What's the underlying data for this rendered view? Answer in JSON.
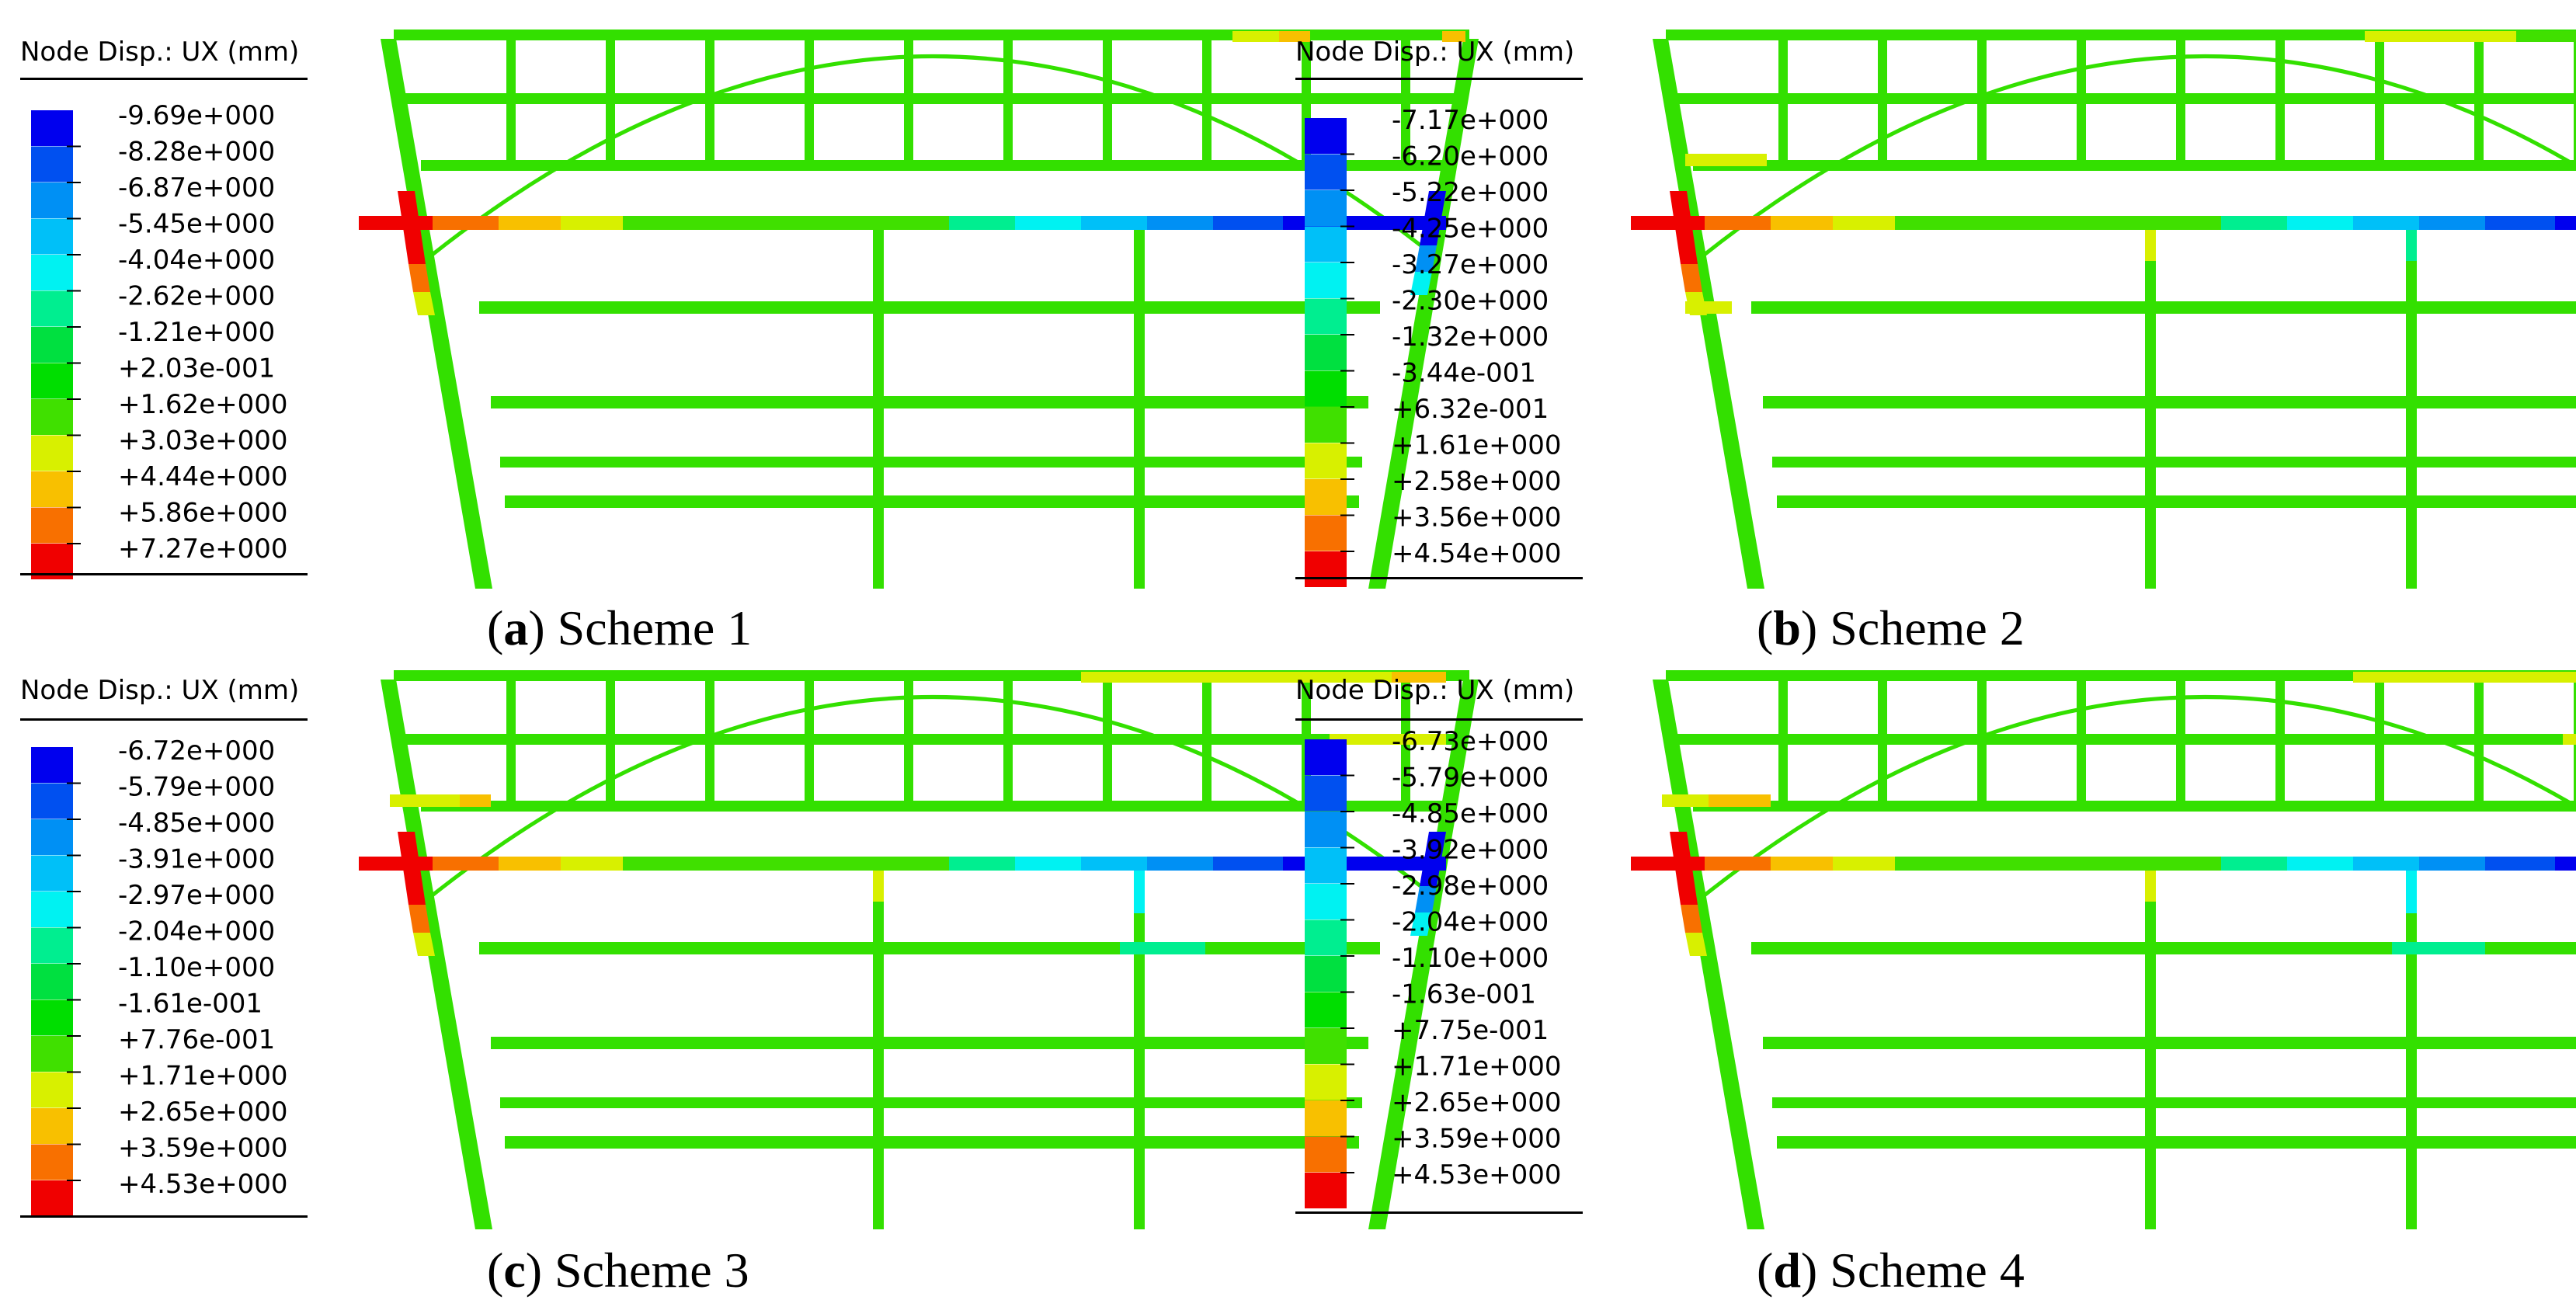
{
  "panels": [
    {
      "id": "a",
      "legend_title": "Node Disp.: UX (mm)",
      "legend_values": [
        "-9.69e+000",
        "-8.28e+000",
        "-6.87e+000",
        "-5.45e+000",
        "-4.04e+000",
        "-2.62e+000",
        "-1.21e+000",
        "+2.03e-001",
        "+1.62e+000",
        "+3.03e+000",
        "+4.44e+000",
        "+5.86e+000",
        "+7.27e+000"
      ],
      "caption": {
        "letter": "a",
        "text": "Scheme 1"
      },
      "extra_left_beam": false
    },
    {
      "id": "b",
      "legend_title": "Node Disp.: UX (mm)",
      "legend_values": [
        "-7.17e+000",
        "-6.20e+000",
        "-5.22e+000",
        "-4.25e+000",
        "-3.27e+000",
        "-2.30e+000",
        "-1.32e+000",
        "-3.44e-001",
        "+6.32e-001",
        "+1.61e+000",
        "+2.58e+000",
        "+3.56e+000",
        "+4.54e+000"
      ],
      "caption": {
        "letter": "b",
        "text": "Scheme 2"
      },
      "extra_left_beam": true
    },
    {
      "id": "c",
      "legend_title": "Node Disp.: UX (mm)",
      "legend_values": [
        "-6.72e+000",
        "-5.79e+000",
        "-4.85e+000",
        "-3.91e+000",
        "-2.97e+000",
        "-2.04e+000",
        "-1.10e+000",
        "-1.61e-001",
        "+7.76e-001",
        "+1.71e+000",
        "+2.65e+000",
        "+3.59e+000",
        "+4.53e+000"
      ],
      "caption": {
        "letter": "c",
        "text": "Scheme 3"
      },
      "extra_left_beam": true
    },
    {
      "id": "d",
      "legend_title": "Node Disp.: UX (mm)",
      "legend_values": [
        "-6.73e+000",
        "-5.79e+000",
        "-4.85e+000",
        "-3.92e+000",
        "-2.98e+000",
        "-2.04e+000",
        "-1.10e+000",
        "-1.63e-001",
        "+7.75e-001",
        "+1.71e+000",
        "+2.65e+000",
        "+3.59e+000",
        "+4.53e+000"
      ],
      "caption": {
        "letter": "d",
        "text": "Scheme 4"
      },
      "extra_left_beam": true
    }
  ],
  "colors": {
    "scale": [
      "#0000ee",
      "#0050f0",
      "#0090f4",
      "#00c0f8",
      "#00f2f2",
      "#00ee90",
      "#00e040",
      "#00de00",
      "#40e000",
      "#d8f000",
      "#f8c000",
      "#f87000",
      "#f00000"
    ],
    "structure": "#33e000"
  }
}
